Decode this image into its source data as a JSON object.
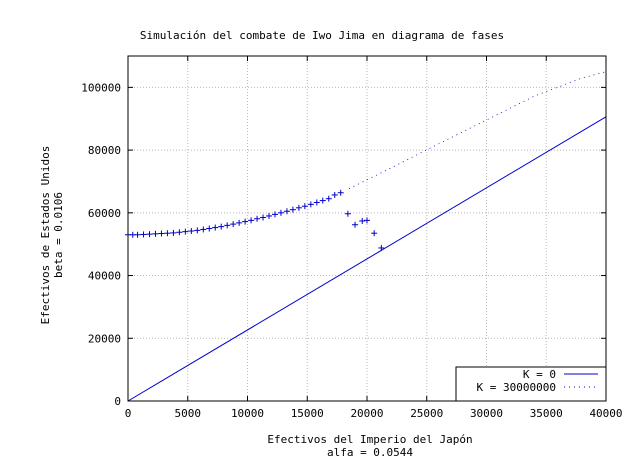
{
  "chart_data": {
    "type": "scatter",
    "title": "Simulación del combate de Iwo Jima en diagrama de fases",
    "xlabel": "Efectivos del Imperio del Japón",
    "xlabel2": "alfa = 0.0544",
    "ylabel": "Efectivos de Estados Unidos",
    "ylabel2": "beta = 0.0106",
    "xlim": [
      0,
      40000
    ],
    "ylim": [
      0,
      110000
    ],
    "x_ticks": [
      0,
      5000,
      10000,
      15000,
      20000,
      25000,
      30000,
      35000,
      40000
    ],
    "x_tick_labels": [
      "0",
      "5000",
      "10000",
      "15000",
      "20000",
      "25000",
      "30000",
      "35000",
      "40000"
    ],
    "y_ticks": [
      0,
      20000,
      40000,
      60000,
      80000,
      100000
    ],
    "y_tick_labels": [
      "0",
      "20000",
      "40000",
      "60000",
      "80000",
      "100000"
    ],
    "grid": true,
    "legend_position": "bottom-right",
    "color": "#0000cc",
    "series": [
      {
        "name": "K = 0",
        "style": "line",
        "x": [
          0,
          40000
        ],
        "y": [
          0,
          90600
        ]
      },
      {
        "name": "K = 30000000",
        "style": "dotted",
        "x": [
          18500,
          22000,
          26000,
          30000,
          34000,
          38000,
          40000
        ],
        "y": [
          67700,
          74300,
          82000,
          89600,
          97200,
          103000,
          105000
        ]
      },
      {
        "name": "",
        "style": "points",
        "x": [
          0,
          400,
          800,
          1300,
          1800,
          2300,
          2800,
          3300,
          3800,
          4300,
          4800,
          5300,
          5800,
          6300,
          6800,
          7300,
          7800,
          8300,
          8800,
          9300,
          9800,
          10300,
          10800,
          11300,
          11800,
          12300,
          12800,
          13300,
          13800,
          14300,
          14800,
          15300,
          15800,
          16300,
          16800,
          17300,
          17800,
          18400,
          19000,
          19600,
          20000,
          20600,
          21200
        ],
        "y": [
          53000,
          53000,
          53000,
          53100,
          53200,
          53300,
          53400,
          53500,
          53600,
          53800,
          54000,
          54200,
          54400,
          54700,
          55000,
          55300,
          55600,
          56000,
          56400,
          56800,
          57200,
          57600,
          58100,
          58500,
          59000,
          59500,
          60000,
          60500,
          61000,
          61600,
          62100,
          62700,
          63300,
          63900,
          64500,
          65700,
          66400,
          59700,
          56200,
          57400,
          57600,
          53500,
          48800
        ]
      }
    ]
  }
}
